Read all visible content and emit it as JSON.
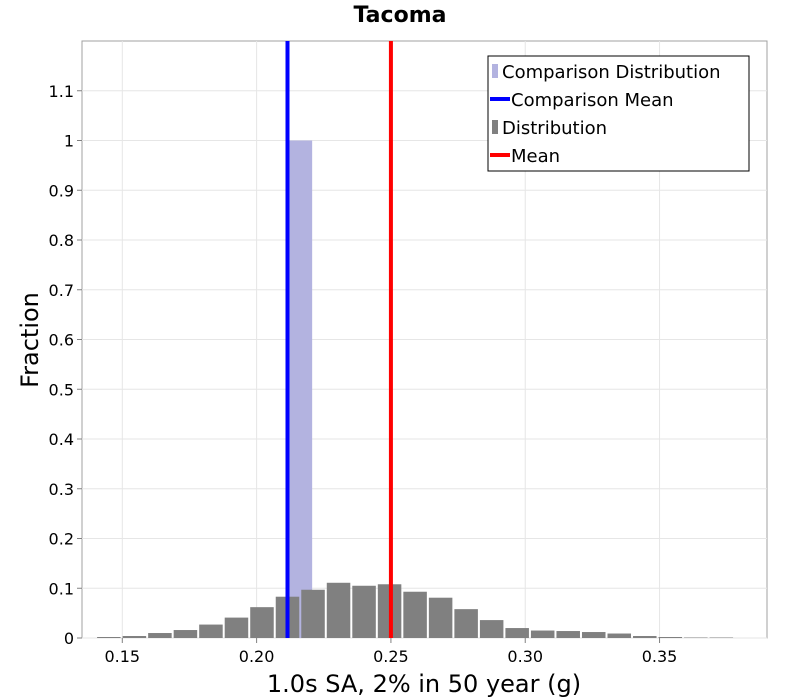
{
  "chart_data": {
    "type": "bar",
    "title": "Tacoma",
    "xlabel": "1.0s SA, 2% in 50 year (g)",
    "ylabel": "Fraction",
    "xlim": [
      0.135,
      0.39
    ],
    "ylim": [
      0,
      1.2
    ],
    "bin_width": 0.0095,
    "x_ticks": [
      {
        "value": 0.15,
        "label": "0.15"
      },
      {
        "value": 0.2,
        "label": "0.20"
      },
      {
        "value": 0.25,
        "label": "0.25"
      },
      {
        "value": 0.3,
        "label": "0.30"
      },
      {
        "value": 0.35,
        "label": "0.35"
      }
    ],
    "y_ticks": [
      {
        "value": 0,
        "label": "0"
      },
      {
        "value": 0.1,
        "label": "0.1"
      },
      {
        "value": 0.2,
        "label": "0.2"
      },
      {
        "value": 0.3,
        "label": "0.3"
      },
      {
        "value": 0.4,
        "label": "0.4"
      },
      {
        "value": 0.5,
        "label": "0.5"
      },
      {
        "value": 0.6,
        "label": "0.6"
      },
      {
        "value": 0.7,
        "label": "0.7"
      },
      {
        "value": 0.8,
        "label": "0.8"
      },
      {
        "value": 0.9,
        "label": "0.9"
      },
      {
        "value": 1.0,
        "label": "1"
      },
      {
        "value": 1.1,
        "label": "1.1"
      }
    ],
    "grid": true,
    "legend_position": "top-right",
    "series": [
      {
        "name": "Comparison Distribution",
        "kind": "bar",
        "color": "#b3b3e0",
        "points": [
          {
            "x": 0.2163,
            "y": 1.0
          }
        ]
      },
      {
        "name": "Comparison Mean",
        "kind": "vline",
        "color": "#0000ff",
        "x": 0.2115
      },
      {
        "name": "Distribution",
        "kind": "bar",
        "color": "#808080",
        "points": [
          {
            "x": 0.145,
            "y": 0.002
          },
          {
            "x": 0.1545,
            "y": 0.004
          },
          {
            "x": 0.164,
            "y": 0.01
          },
          {
            "x": 0.1735,
            "y": 0.016
          },
          {
            "x": 0.183,
            "y": 0.027
          },
          {
            "x": 0.1925,
            "y": 0.041
          },
          {
            "x": 0.202,
            "y": 0.062
          },
          {
            "x": 0.2115,
            "y": 0.083
          },
          {
            "x": 0.221,
            "y": 0.097
          },
          {
            "x": 0.2305,
            "y": 0.111
          },
          {
            "x": 0.24,
            "y": 0.105
          },
          {
            "x": 0.2495,
            "y": 0.108
          },
          {
            "x": 0.259,
            "y": 0.093
          },
          {
            "x": 0.2685,
            "y": 0.081
          },
          {
            "x": 0.278,
            "y": 0.058
          },
          {
            "x": 0.2875,
            "y": 0.036
          },
          {
            "x": 0.297,
            "y": 0.02
          },
          {
            "x": 0.3065,
            "y": 0.015
          },
          {
            "x": 0.316,
            "y": 0.014
          },
          {
            "x": 0.3255,
            "y": 0.012
          },
          {
            "x": 0.335,
            "y": 0.009
          },
          {
            "x": 0.3445,
            "y": 0.004
          },
          {
            "x": 0.354,
            "y": 0.002
          },
          {
            "x": 0.3635,
            "y": 0.001
          },
          {
            "x": 0.373,
            "y": 0.001
          }
        ]
      },
      {
        "name": "Mean",
        "kind": "vline",
        "color": "#ff0000",
        "x": 0.25
      }
    ]
  }
}
